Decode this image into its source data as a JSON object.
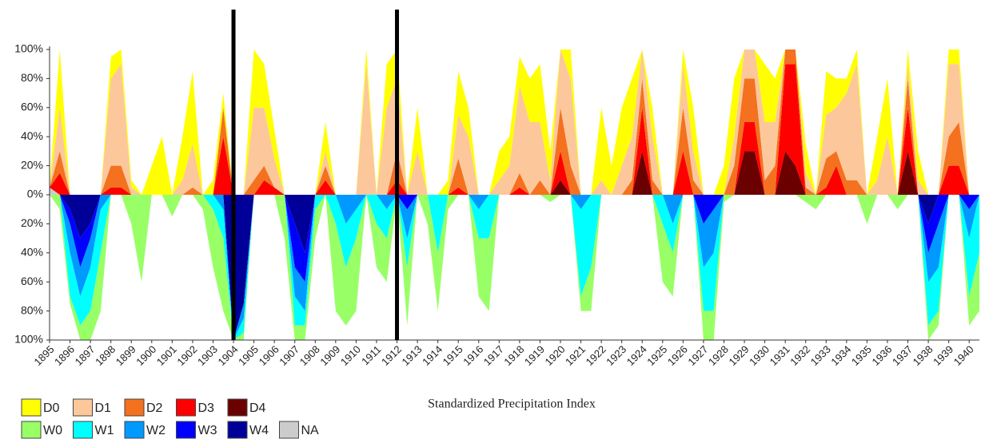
{
  "chart_data": {
    "type": "stacked-area",
    "xlabel": "Standardized Precipitation Index",
    "x": [
      1895,
      1895.5,
      1896,
      1896.5,
      1897,
      1897.5,
      1898,
      1898.5,
      1899,
      1899.5,
      1900,
      1900.5,
      1901,
      1901.5,
      1902,
      1902.5,
      1903,
      1903.5,
      1904,
      1904.5,
      1905,
      1905.5,
      1906,
      1906.5,
      1907,
      1907.5,
      1908,
      1908.5,
      1909,
      1909.5,
      1910,
      1910.5,
      1911,
      1911.5,
      1912,
      1912.5,
      1913,
      1913.5,
      1914,
      1914.5,
      1915,
      1915.5,
      1916,
      1916.5,
      1917,
      1917.5,
      1918,
      1918.5,
      1919,
      1919.5,
      1920,
      1920.5,
      1921,
      1921.5,
      1922,
      1922.5,
      1923,
      1923.5,
      1924,
      1924.5,
      1925,
      1925.5,
      1926,
      1926.5,
      1927,
      1927.5,
      1928,
      1928.5,
      1929,
      1929.5,
      1930,
      1930.5,
      1931,
      1931.5,
      1932,
      1932.5,
      1933,
      1933.5,
      1934,
      1934.5,
      1935,
      1935.5,
      1936,
      1936.5,
      1937,
      1937.5,
      1938,
      1938.5,
      1939,
      1939.5,
      1940,
      1940.5
    ],
    "series": [
      {
        "name": "D0",
        "color": "#ffff00",
        "values": [
          0,
          40,
          0,
          0,
          0,
          0,
          15,
          10,
          5,
          0,
          20,
          40,
          0,
          30,
          50,
          0,
          10,
          10,
          0,
          0,
          40,
          30,
          20,
          0,
          0,
          0,
          0,
          20,
          0,
          0,
          0,
          10,
          0,
          30,
          20,
          0,
          30,
          0,
          0,
          10,
          30,
          20,
          0,
          0,
          20,
          20,
          20,
          30,
          40,
          20,
          0,
          20,
          0,
          0,
          50,
          20,
          40,
          40,
          0,
          20,
          0,
          0,
          10,
          30,
          0,
          0,
          20,
          40,
          0,
          0,
          40,
          30,
          0,
          0,
          20,
          0,
          30,
          20,
          10,
          10,
          0,
          30,
          40,
          0,
          10,
          20,
          0,
          0,
          10,
          10,
          0,
          0
        ]
      },
      {
        "name": "D1",
        "color": "#fcc89b",
        "values": [
          0,
          30,
          0,
          0,
          0,
          0,
          60,
          70,
          5,
          0,
          0,
          0,
          0,
          10,
          30,
          0,
          0,
          0,
          0,
          0,
          50,
          40,
          20,
          0,
          0,
          0,
          0,
          10,
          0,
          0,
          0,
          90,
          0,
          60,
          50,
          0,
          30,
          0,
          0,
          0,
          30,
          40,
          0,
          0,
          10,
          20,
          60,
          50,
          40,
          10,
          40,
          60,
          0,
          0,
          10,
          0,
          20,
          30,
          20,
          30,
          0,
          0,
          30,
          20,
          0,
          0,
          0,
          20,
          20,
          20,
          40,
          30,
          0,
          0,
          10,
          0,
          30,
          30,
          60,
          80,
          0,
          10,
          40,
          0,
          10,
          10,
          0,
          0,
          50,
          40,
          0,
          0
        ]
      },
      {
        "name": "D2",
        "color": "#f4711f",
        "values": [
          0,
          15,
          0,
          0,
          0,
          0,
          15,
          15,
          0,
          0,
          0,
          0,
          0,
          0,
          5,
          0,
          0,
          20,
          0,
          0,
          10,
          10,
          0,
          0,
          0,
          0,
          0,
          10,
          0,
          0,
          0,
          0,
          0,
          0,
          20,
          0,
          0,
          0,
          0,
          0,
          20,
          0,
          0,
          0,
          0,
          0,
          10,
          0,
          10,
          0,
          30,
          20,
          0,
          0,
          0,
          0,
          0,
          10,
          20,
          10,
          0,
          0,
          30,
          10,
          0,
          0,
          0,
          20,
          30,
          30,
          10,
          20,
          10,
          10,
          5,
          0,
          20,
          10,
          10,
          10,
          0,
          0,
          0,
          0,
          20,
          0,
          0,
          0,
          20,
          30,
          0,
          0
        ]
      },
      {
        "name": "D3",
        "color": "#ff0000",
        "values": [
          0,
          15,
          0,
          0,
          0,
          0,
          5,
          5,
          0,
          0,
          0,
          0,
          0,
          0,
          0,
          0,
          0,
          40,
          0,
          0,
          0,
          10,
          5,
          0,
          0,
          0,
          0,
          10,
          0,
          0,
          0,
          0,
          0,
          0,
          10,
          0,
          0,
          0,
          0,
          0,
          5,
          0,
          0,
          0,
          0,
          0,
          5,
          0,
          0,
          0,
          20,
          0,
          0,
          0,
          0,
          0,
          0,
          0,
          30,
          0,
          0,
          0,
          30,
          0,
          0,
          0,
          0,
          0,
          20,
          20,
          0,
          0,
          60,
          70,
          0,
          0,
          5,
          20,
          0,
          0,
          0,
          0,
          0,
          0,
          30,
          0,
          0,
          0,
          20,
          20,
          0,
          0
        ]
      },
      {
        "name": "D4",
        "color": "#6b0000",
        "values": [
          0,
          0,
          0,
          0,
          0,
          0,
          0,
          0,
          0,
          0,
          0,
          0,
          0,
          0,
          0,
          0,
          0,
          0,
          0,
          0,
          0,
          0,
          0,
          0,
          0,
          0,
          0,
          0,
          0,
          0,
          0,
          0,
          0,
          0,
          0,
          0,
          0,
          0,
          0,
          0,
          0,
          0,
          0,
          0,
          0,
          0,
          0,
          0,
          0,
          0,
          10,
          0,
          0,
          0,
          0,
          0,
          0,
          0,
          30,
          0,
          0,
          0,
          0,
          0,
          0,
          0,
          0,
          0,
          30,
          30,
          0,
          0,
          30,
          20,
          0,
          0,
          0,
          0,
          0,
          0,
          0,
          0,
          0,
          0,
          30,
          0,
          0,
          0,
          0,
          0,
          0,
          0
        ]
      },
      {
        "name": "W0",
        "color": "#99ff66",
        "values": [
          0,
          -10,
          -5,
          -10,
          -20,
          -40,
          0,
          0,
          -20,
          -60,
          0,
          0,
          -15,
          0,
          0,
          -10,
          -40,
          -50,
          0,
          -5,
          0,
          0,
          0,
          -30,
          -10,
          -10,
          -20,
          0,
          -60,
          -40,
          -50,
          0,
          -30,
          -30,
          0,
          -40,
          0,
          -20,
          -40,
          -10,
          0,
          0,
          -40,
          -50,
          0,
          0,
          0,
          0,
          0,
          -5,
          0,
          0,
          -10,
          -30,
          0,
          0,
          0,
          0,
          0,
          0,
          -40,
          -30,
          0,
          0,
          -20,
          -20,
          -5,
          0,
          0,
          0,
          0,
          0,
          0,
          0,
          -5,
          -10,
          0,
          0,
          0,
          0,
          -20,
          0,
          0,
          -10,
          0,
          0,
          -10,
          -10,
          0,
          0,
          -20,
          -40
        ]
      },
      {
        "name": "W1",
        "color": "#00ffff",
        "values": [
          0,
          0,
          -30,
          -20,
          -30,
          -30,
          0,
          0,
          0,
          0,
          0,
          0,
          0,
          0,
          0,
          0,
          -10,
          -20,
          0,
          -10,
          0,
          0,
          0,
          0,
          -20,
          -10,
          -10,
          0,
          -20,
          -30,
          -20,
          0,
          -20,
          -20,
          0,
          -20,
          0,
          0,
          -40,
          0,
          0,
          0,
          -20,
          -30,
          0,
          0,
          0,
          0,
          0,
          0,
          0,
          0,
          -60,
          -50,
          0,
          0,
          0,
          0,
          0,
          0,
          -20,
          -20,
          0,
          0,
          -30,
          -40,
          0,
          0,
          0,
          0,
          0,
          0,
          0,
          0,
          0,
          0,
          0,
          0,
          0,
          0,
          0,
          0,
          0,
          0,
          0,
          0,
          -30,
          -30,
          0,
          0,
          -40,
          -40
        ]
      },
      {
        "name": "W2",
        "color": "#0099ff",
        "values": [
          0,
          0,
          -20,
          -20,
          -20,
          -10,
          0,
          0,
          0,
          0,
          0,
          0,
          0,
          0,
          0,
          0,
          0,
          -10,
          0,
          -10,
          0,
          0,
          0,
          0,
          -20,
          -20,
          0,
          0,
          0,
          -20,
          -10,
          0,
          0,
          -10,
          0,
          -20,
          0,
          0,
          0,
          0,
          0,
          0,
          -10,
          0,
          0,
          0,
          0,
          0,
          0,
          0,
          0,
          0,
          -10,
          0,
          0,
          0,
          0,
          0,
          0,
          0,
          0,
          -20,
          0,
          0,
          -30,
          -30,
          0,
          0,
          0,
          0,
          0,
          0,
          0,
          0,
          0,
          0,
          0,
          0,
          0,
          0,
          0,
          0,
          0,
          0,
          0,
          0,
          -20,
          -30,
          0,
          0,
          -20,
          0
        ]
      },
      {
        "name": "W3",
        "color": "#0000ff",
        "values": [
          0,
          0,
          -10,
          -20,
          -10,
          0,
          0,
          0,
          0,
          0,
          0,
          0,
          0,
          0,
          0,
          0,
          0,
          0,
          0,
          0,
          0,
          0,
          0,
          0,
          -30,
          -20,
          0,
          0,
          0,
          0,
          0,
          0,
          0,
          0,
          0,
          -10,
          0,
          0,
          0,
          0,
          0,
          0,
          0,
          0,
          0,
          0,
          0,
          0,
          0,
          0,
          0,
          0,
          0,
          0,
          0,
          0,
          0,
          0,
          0,
          0,
          0,
          0,
          0,
          0,
          -20,
          -10,
          0,
          0,
          0,
          0,
          0,
          0,
          0,
          0,
          0,
          0,
          0,
          0,
          0,
          0,
          0,
          0,
          0,
          0,
          0,
          0,
          -20,
          -20,
          0,
          0,
          -10,
          0
        ]
      },
      {
        "name": "W4",
        "color": "#000099",
        "values": [
          0,
          0,
          -10,
          -30,
          -20,
          0,
          0,
          0,
          0,
          0,
          0,
          0,
          0,
          0,
          0,
          0,
          0,
          0,
          -100,
          -75,
          0,
          0,
          0,
          0,
          -20,
          -40,
          0,
          0,
          0,
          0,
          0,
          0,
          0,
          0,
          0,
          0,
          0,
          0,
          0,
          0,
          0,
          0,
          0,
          0,
          0,
          0,
          0,
          0,
          0,
          0,
          0,
          0,
          0,
          0,
          0,
          0,
          0,
          0,
          0,
          0,
          0,
          0,
          0,
          0,
          0,
          0,
          0,
          0,
          0,
          0,
          0,
          0,
          0,
          0,
          0,
          0,
          0,
          0,
          0,
          0,
          0,
          0,
          0,
          0,
          0,
          0,
          -20,
          0,
          0,
          0,
          0,
          0
        ]
      },
      {
        "name": "NA",
        "color": "#cccccc",
        "values": [
          5,
          0,
          0,
          0,
          0,
          0,
          0,
          0,
          0,
          0,
          0,
          0,
          0,
          0,
          0,
          0,
          0,
          0,
          0,
          0,
          0,
          0,
          0,
          0,
          0,
          0,
          0,
          0,
          0,
          0,
          0,
          0,
          0,
          0,
          0,
          0,
          0,
          0,
          0,
          0,
          0,
          0,
          0,
          0,
          0,
          0,
          0,
          0,
          0,
          0,
          0,
          0,
          0,
          0,
          0,
          0,
          0,
          0,
          0,
          0,
          0,
          0,
          0,
          0,
          0,
          0,
          0,
          0,
          0,
          0,
          0,
          0,
          0,
          0,
          0,
          0,
          0,
          0,
          0,
          0,
          0,
          0,
          0,
          0,
          0,
          0,
          0,
          0,
          0,
          0,
          0,
          0
        ]
      }
    ],
    "xlim": [
      1895,
      1940.5
    ],
    "xticks": [
      1895,
      1896,
      1897,
      1898,
      1899,
      1900,
      1901,
      1902,
      1903,
      1904,
      1905,
      1906,
      1907,
      1908,
      1909,
      1910,
      1911,
      1912,
      1913,
      1914,
      1915,
      1916,
      1917,
      1918,
      1919,
      1920,
      1921,
      1922,
      1923,
      1924,
      1925,
      1926,
      1927,
      1928,
      1929,
      1930,
      1931,
      1932,
      1933,
      1934,
      1935,
      1936,
      1937,
      1938,
      1939,
      1940
    ],
    "ylim": [
      -100,
      100
    ],
    "yticks": [
      {
        "value": 100,
        "label": "100%"
      },
      {
        "value": 80,
        "label": "80%"
      },
      {
        "value": 60,
        "label": "60%"
      },
      {
        "value": 40,
        "label": "40%"
      },
      {
        "value": 20,
        "label": "20%"
      },
      {
        "value": 0,
        "label": "0%"
      },
      {
        "value": -20,
        "label": "20%"
      },
      {
        "value": -40,
        "label": "40%"
      },
      {
        "value": -60,
        "label": "60%"
      },
      {
        "value": -80,
        "label": "80%"
      },
      {
        "value": -100,
        "label": "100%"
      }
    ],
    "vlines": [
      1904,
      1912
    ],
    "legend": "bottom-left"
  }
}
